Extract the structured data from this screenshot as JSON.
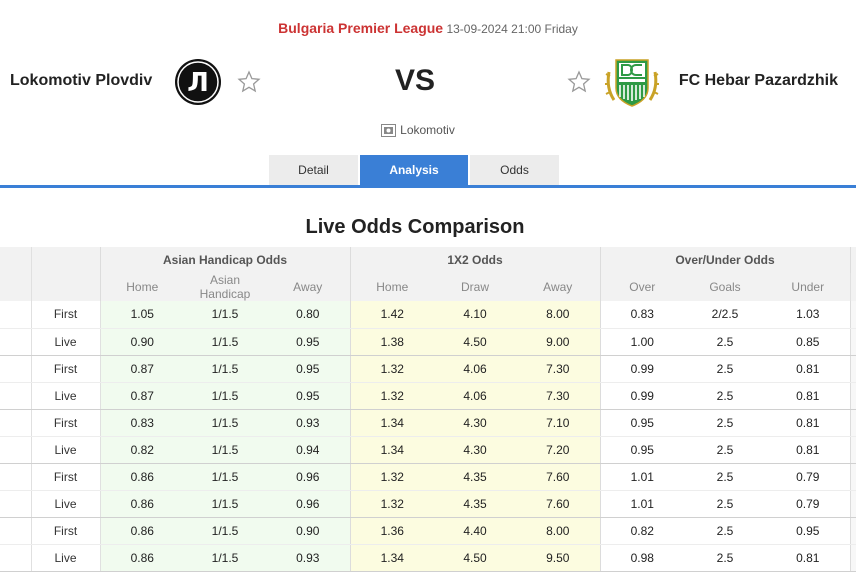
{
  "match": {
    "league": "Bulgaria Premier League",
    "datetime": "13-09-2024 21:00 Friday",
    "home_team": "Lokomotiv Plovdiv",
    "away_team": "FC Hebar Pazardzhik",
    "vs": "VS",
    "venue": "Lokomotiv",
    "home_logo_letter": "Л"
  },
  "tabs": [
    {
      "label": "Detail",
      "active": false
    },
    {
      "label": "Analysis",
      "active": true
    },
    {
      "label": "Odds",
      "active": false
    }
  ],
  "odds": {
    "title": "Live Odds Comparison",
    "groups": [
      "Asian Handicap Odds",
      "1X2 Odds",
      "Over/Under Odds"
    ],
    "subheaders": [
      "Home",
      "Asian Handicap",
      "Away",
      "Home",
      "Draw",
      "Away",
      "Over",
      "Goals",
      "Under"
    ],
    "rows": [
      {
        "type": "First",
        "values": [
          "1.05",
          "1/1.5",
          "0.80",
          "1.42",
          "4.10",
          "8.00",
          "0.83",
          "2/2.5",
          "1.03"
        ]
      },
      {
        "type": "Live",
        "values": [
          "0.90",
          "1/1.5",
          "0.95",
          "1.38",
          "4.50",
          "9.00",
          "1.00",
          "2.5",
          "0.85"
        ]
      },
      {
        "type": "First",
        "values": [
          "0.87",
          "1/1.5",
          "0.95",
          "1.32",
          "4.06",
          "7.30",
          "0.99",
          "2.5",
          "0.81"
        ]
      },
      {
        "type": "Live",
        "values": [
          "0.87",
          "1/1.5",
          "0.95",
          "1.32",
          "4.06",
          "7.30",
          "0.99",
          "2.5",
          "0.81"
        ]
      },
      {
        "type": "First",
        "values": [
          "0.83",
          "1/1.5",
          "0.93",
          "1.34",
          "4.30",
          "7.10",
          "0.95",
          "2.5",
          "0.81"
        ]
      },
      {
        "type": "Live",
        "values": [
          "0.82",
          "1/1.5",
          "0.94",
          "1.34",
          "4.30",
          "7.20",
          "0.95",
          "2.5",
          "0.81"
        ]
      },
      {
        "type": "First",
        "values": [
          "0.86",
          "1/1.5",
          "0.96",
          "1.32",
          "4.35",
          "7.60",
          "1.01",
          "2.5",
          "0.79"
        ]
      },
      {
        "type": "Live",
        "values": [
          "0.86",
          "1/1.5",
          "0.96",
          "1.32",
          "4.35",
          "7.60",
          "1.01",
          "2.5",
          "0.79"
        ]
      },
      {
        "type": "First",
        "values": [
          "0.86",
          "1/1.5",
          "0.90",
          "1.36",
          "4.40",
          "8.00",
          "0.82",
          "2.5",
          "0.95"
        ]
      },
      {
        "type": "Live",
        "values": [
          "0.86",
          "1/1.5",
          "0.93",
          "1.34",
          "4.50",
          "9.50",
          "0.98",
          "2.5",
          "0.81"
        ]
      }
    ]
  },
  "colors": {
    "accent": "#3a7fd6",
    "league": "#cc3333",
    "ah_bg": "#f1fbef",
    "x12_bg": "#fcfce0",
    "away_logo_green": "#2e9a45",
    "away_logo_gold": "#c9a227"
  },
  "icons": [
    "star-icon",
    "stadium-icon"
  ]
}
